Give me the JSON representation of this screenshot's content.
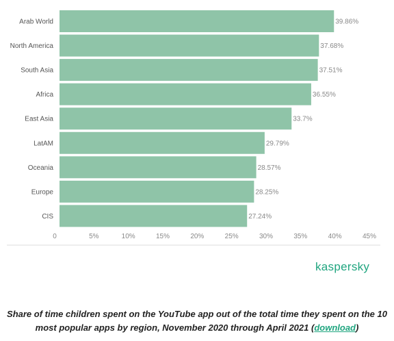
{
  "chart_data": {
    "type": "bar",
    "orientation": "horizontal",
    "categories": [
      "Arab World",
      "North America",
      "South Asia",
      "Africa",
      "East Asia",
      "LatAM",
      "Oceania",
      "Europe",
      "CIS"
    ],
    "values": [
      39.86,
      37.68,
      37.51,
      36.55,
      33.7,
      29.79,
      28.57,
      28.25,
      27.24
    ],
    "value_labels": [
      "39.86%",
      "37.68%",
      "37.51%",
      "36.55%",
      "33.7%",
      "29.79%",
      "28.57%",
      "28.25%",
      "27.24%"
    ],
    "xlim": [
      0,
      45
    ],
    "x_ticks": [
      0,
      5,
      10,
      15,
      20,
      25,
      30,
      35,
      40,
      45
    ],
    "x_tick_labels": [
      "0",
      "5%",
      "10%",
      "15%",
      "20%",
      "25%",
      "30%",
      "35%",
      "40%",
      "45%"
    ],
    "bar_color": "#8fc4a8",
    "grid": false,
    "legend": "none"
  },
  "brand": {
    "name": "kaspersky",
    "color": "#1fa57f"
  },
  "caption": {
    "text": "Share of time children spent on the YouTube app out of the total time they spent on the 10 most popular apps by region, November 2020 through April 2021 (",
    "link_text": "download",
    "suffix": ")"
  }
}
